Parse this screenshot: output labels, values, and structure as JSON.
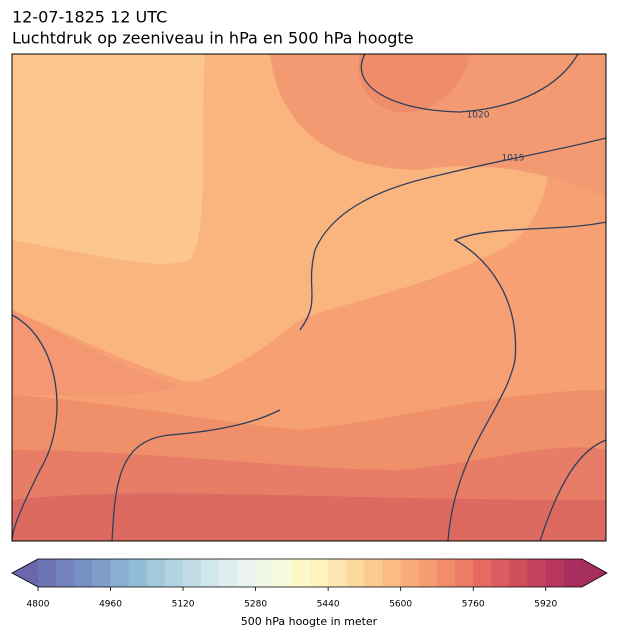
{
  "header": {
    "title": "12-07-1825 12 UTC",
    "subtitle": "Luchtdruk op zeeniveau in hPa en 500 hPa hoogte"
  },
  "map": {
    "isobar_labels": [
      1020,
      1015
    ]
  },
  "colorbar": {
    "label": "500 hPa hoogte in meter",
    "lim": [
      4800,
      6000
    ],
    "ticks": [
      4800,
      4960,
      5120,
      5280,
      5440,
      5600,
      5760,
      5920
    ],
    "colors": [
      "#6c74b4",
      "#7282bc",
      "#7891c4",
      "#7f9fca",
      "#88afd0",
      "#93bdd6",
      "#a2c9dc",
      "#b2d4e2",
      "#c2dde8",
      "#d2e6ee",
      "#e0eef0",
      "#ebf4ef",
      "#f2f8e8",
      "#f8fadc",
      "#fdf8c8",
      "#fef3bc",
      "#fde6b0",
      "#fdd9a0",
      "#fccb91",
      "#fbbc84",
      "#f9ac7a",
      "#f69c72",
      "#f28c6b",
      "#ec7c66",
      "#e56b62",
      "#dc5c5f",
      "#d14e5d",
      "#c5425d",
      "#b8365d",
      "#a92e5e"
    ],
    "extend_colors": [
      "#6a67ad",
      "#a42f5e"
    ]
  }
}
